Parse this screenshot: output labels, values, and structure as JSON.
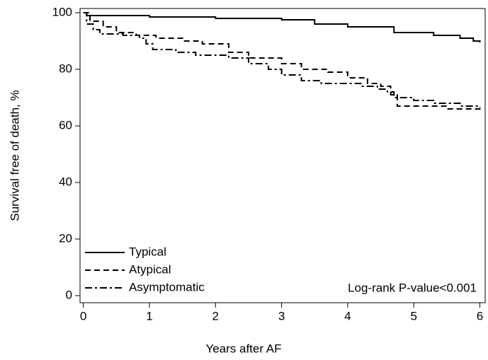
{
  "chart_data": {
    "type": "step",
    "xlabel": "Years after AF",
    "ylabel": "Survival free of death, %",
    "annotation": "Log-rank P-value<0.001",
    "xlim": [
      -0.05,
      6.08
    ],
    "xticks": [
      0,
      1,
      2,
      3,
      4,
      5,
      6
    ],
    "ylim": [
      -2.5,
      101.5
    ],
    "yticks": [
      0,
      20,
      40,
      60,
      80,
      100
    ],
    "legend": "lower-left",
    "series": [
      {
        "name": "Typical",
        "color": "#000000",
        "dash": "solid",
        "x": [
          0,
          0.05,
          1,
          2,
          3,
          3.5,
          4,
          4.7,
          5.3,
          5.7,
          5.9,
          6
        ],
        "values": [
          100,
          99,
          98.5,
          98,
          97.5,
          96,
          95,
          93,
          92,
          91,
          90,
          89.5
        ]
      },
      {
        "name": "Atypical",
        "color": "#000000",
        "dash": "dashed",
        "x": [
          0,
          0.1,
          0.3,
          0.5,
          0.8,
          1.1,
          1.5,
          1.8,
          2.2,
          2.5,
          3.0,
          3.3,
          3.7,
          4.0,
          4.3,
          4.5,
          4.65,
          4.75,
          5.5,
          6
        ],
        "values": [
          100,
          97,
          95,
          93,
          92,
          91,
          90,
          89,
          86,
          84,
          82,
          80,
          79,
          77,
          75,
          74,
          71,
          67,
          66,
          65.5
        ]
      },
      {
        "name": "Asymptomatic",
        "color": "#000000",
        "dash": "dashdot",
        "x": [
          0,
          0.05,
          0.15,
          0.25,
          0.6,
          0.85,
          0.95,
          1.05,
          1.4,
          1.7,
          2.2,
          2.5,
          2.8,
          3.0,
          3.3,
          3.6,
          4.2,
          4.45,
          4.6,
          4.7,
          5.0,
          5.3,
          5.7,
          6
        ],
        "values": [
          100,
          96,
          94,
          92.5,
          92,
          91,
          89,
          87,
          86,
          85,
          84,
          82,
          80,
          78,
          76,
          75,
          74,
          73,
          72,
          70,
          69,
          68,
          67,
          66.5
        ]
      }
    ]
  }
}
